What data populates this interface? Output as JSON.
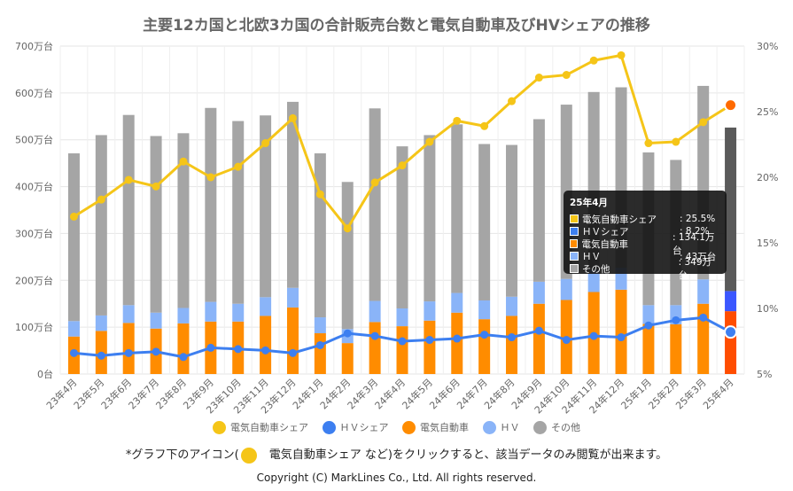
{
  "title": "主要12カ国と北欧3カ国の合計販売台数と電気自動車及びHVシェアの推移",
  "colors": {
    "ev_share": "#f5c518",
    "hv_share": "#3d7ff0",
    "ev": "#ff8c00",
    "hv": "#8ab4f8",
    "other": "#a5a5a5",
    "ev_highlight": "#ff4d00",
    "hv_highlight": "#3b57ff",
    "other_highlight": "#5a5a5a"
  },
  "legend": [
    {
      "key": "ev_share",
      "label": "電気自動車シェア",
      "color": "#f5c518"
    },
    {
      "key": "hv_share",
      "label": "ＨＶシェア",
      "color": "#3d7ff0"
    },
    {
      "key": "ev",
      "label": "電気自動車",
      "color": "#ff8c00"
    },
    {
      "key": "hv",
      "label": "ＨＶ",
      "color": "#8ab4f8"
    },
    {
      "key": "other",
      "label": "その他",
      "color": "#a5a5a5"
    }
  ],
  "note": {
    "prefix": "*グラフ下のアイコン(",
    "label": "電気自動車シェア など)をクリックすると、該当データのみ閲覧が出来ます。"
  },
  "copyright": "Copyright (C) MarkLines Co., Ltd. All rights reserved.",
  "tooltip": {
    "title": "25年4月",
    "rows": [
      {
        "label": "電気自動車シェア",
        "value": ": 25.5%",
        "color": "#f5c518"
      },
      {
        "label": "ＨＶシェア",
        "value": ": 8.2%",
        "color": "#3d7ff0"
      },
      {
        "label": "電気自動車",
        "value": ": 134.1万台",
        "color": "#ff8c00"
      },
      {
        "label": "ＨＶ",
        "value": ": 43万台",
        "color": "#8ab4f8"
      },
      {
        "label": "その他",
        "value": ": 349万台",
        "color": "#a5a5a5"
      }
    ]
  },
  "chart_data": {
    "type": "bar",
    "stacked": true,
    "categories": [
      "23年4月",
      "23年5月",
      "23年6月",
      "23年7月",
      "23年8月",
      "23年9月",
      "23年10月",
      "23年11月",
      "23年12月",
      "24年1月",
      "24年2月",
      "24年3月",
      "24年4月",
      "24年5月",
      "24年6月",
      "24年7月",
      "24年8月",
      "24年9月",
      "24年10月",
      "24年11月",
      "24年12月",
      "25年1月",
      "25年2月",
      "25年3月",
      "25年4月"
    ],
    "y_left": {
      "min": 0,
      "max": 700,
      "ticks": [
        "0台",
        "100万台",
        "200万台",
        "300万台",
        "400万台",
        "500万台",
        "600万台",
        "700万台"
      ]
    },
    "y_right": {
      "min": 5,
      "max": 30,
      "ticks": [
        "5%",
        "10%",
        "15%",
        "20%",
        "25%",
        "30%"
      ]
    },
    "grid": true,
    "legend_position": "bottom",
    "series": [
      {
        "name": "電気自動車",
        "type": "bar",
        "axis": "left",
        "values": [
          80,
          92,
          109,
          97,
          108,
          112,
          112,
          124,
          142,
          87,
          66,
          111,
          102,
          114,
          131,
          117,
          124,
          150,
          158,
          175,
          180,
          107,
          106,
          150,
          134.1
        ]
      },
      {
        "name": "ＨＶ",
        "type": "bar",
        "axis": "left",
        "values": [
          33,
          33,
          38,
          34,
          33,
          42,
          38,
          40,
          42,
          34,
          30,
          45,
          38,
          41,
          42,
          40,
          41,
          47,
          45,
          48,
          47,
          40,
          41,
          52,
          43
        ]
      },
      {
        "name": "その他",
        "type": "bar",
        "axis": "left",
        "values": [
          358,
          385,
          406,
          377,
          373,
          414,
          390,
          388,
          397,
          350,
          314,
          411,
          346,
          355,
          360,
          334,
          324,
          347,
          372,
          379,
          385,
          326,
          310,
          413,
          349
        ]
      },
      {
        "name": "電気自動車シェア",
        "type": "line",
        "axis": "right",
        "values": [
          17.0,
          18.3,
          19.8,
          19.3,
          21.2,
          20.0,
          20.8,
          22.6,
          24.5,
          18.7,
          16.1,
          19.6,
          20.9,
          22.7,
          24.3,
          23.9,
          25.8,
          27.6,
          27.8,
          28.9,
          29.3,
          22.6,
          22.7,
          24.2,
          25.5
        ]
      },
      {
        "name": "ＨＶシェア",
        "type": "line",
        "axis": "right",
        "values": [
          6.6,
          6.4,
          6.6,
          6.7,
          6.3,
          7.0,
          6.9,
          6.8,
          6.6,
          7.2,
          8.1,
          7.9,
          7.5,
          7.6,
          7.7,
          8.0,
          7.8,
          8.3,
          7.6,
          7.9,
          7.8,
          8.7,
          9.1,
          9.3,
          8.2
        ]
      }
    ]
  }
}
